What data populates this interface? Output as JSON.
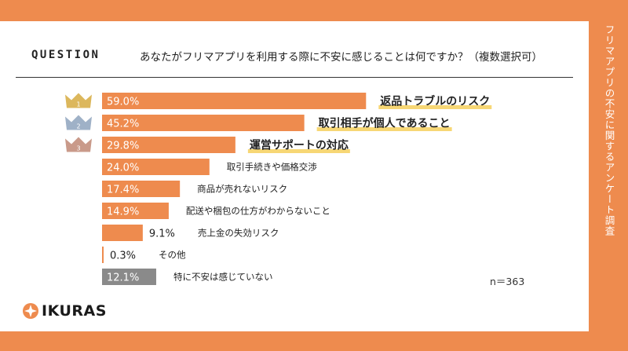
{
  "side_title": "フリマアプリの不安に関するアンケート調査",
  "question": {
    "label": "QUESTION",
    "text": "あなたがフリマアプリを利用する際に不安に感じることは何ですか？（複数選択可）"
  },
  "sample_size": "n＝363",
  "logo": {
    "text": "IKURAS"
  },
  "colors": {
    "background": "#ee8b4e",
    "bar": "#ee8b4e",
    "bar_other": "#8a8a8a",
    "highlight": "#f7d775",
    "crown_gold": "#dcb75c",
    "crown_silver": "#9fb1c7",
    "crown_bronze": "#c99a8a"
  },
  "chart_data": {
    "type": "bar",
    "orientation": "horizontal",
    "title": "",
    "xlabel": "",
    "ylabel": "",
    "xlim": [
      0,
      100
    ],
    "unit": "%",
    "categories": [
      "返品トラブルのリスク",
      "取引相手が個人であること",
      "運営サポートの対応",
      "取引手続きや価格交渉",
      "商品が売れないリスク",
      "配送や梱包の仕方がわからないこと",
      "売上金の失効リスク",
      "その他",
      "特に不安は感じていない"
    ],
    "values": [
      59.0,
      45.2,
      29.8,
      24.0,
      17.4,
      14.9,
      9.1,
      0.3,
      12.1
    ],
    "value_labels": [
      "59.0%",
      "45.2%",
      "29.8%",
      "24.0%",
      "17.4%",
      "14.9%",
      "9.1%",
      "0.3%",
      "12.1%"
    ],
    "ranks": [
      "1",
      "2",
      "3"
    ],
    "highlighted_count": 3,
    "gray_index": 8
  }
}
